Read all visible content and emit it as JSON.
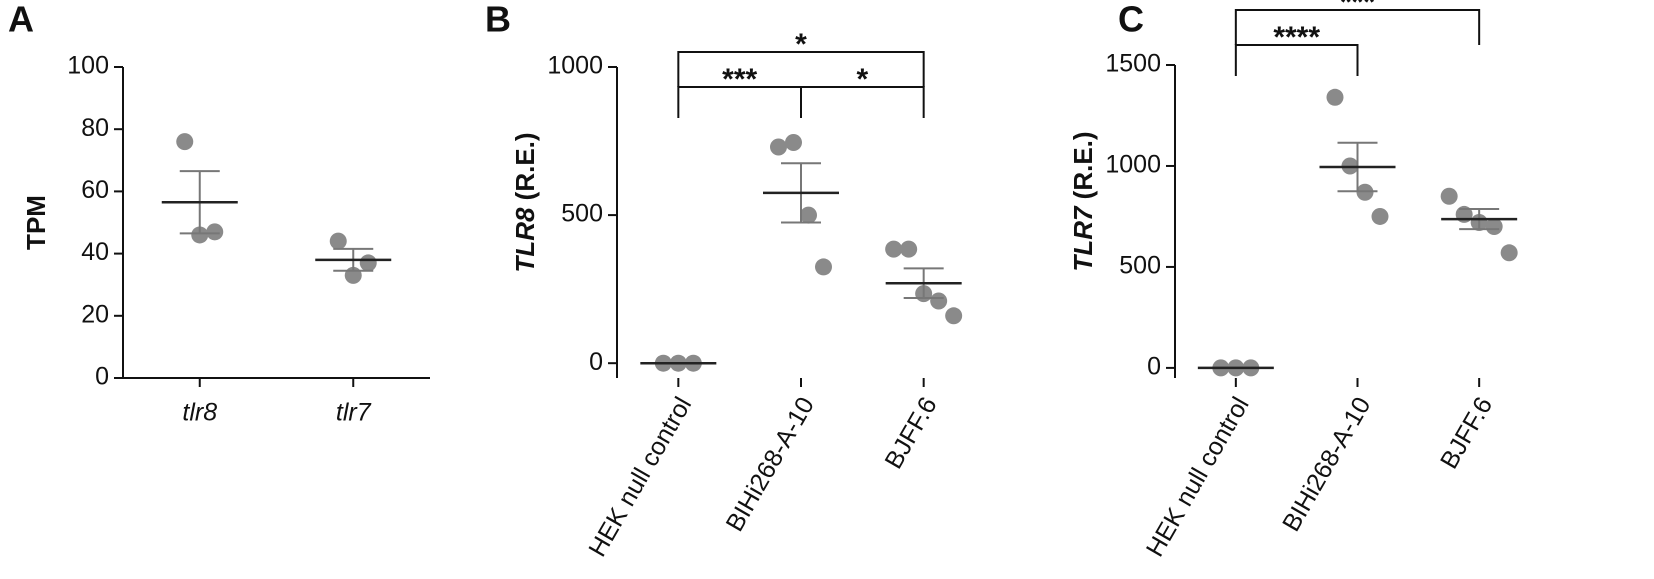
{
  "chart_data": [
    {
      "type": "dot",
      "panel": "A",
      "ylabel": "TPM",
      "categories": [
        "tlr8",
        "tlr7"
      ],
      "category_style": "italic",
      "x_axis_line": true,
      "points": [
        [
          76,
          46,
          47
        ],
        [
          44,
          33,
          37
        ]
      ],
      "means": [
        56.5,
        38
      ],
      "errors": [
        10,
        3.5
      ],
      "color": "#8a8a8a",
      "ylim": [
        0,
        100
      ],
      "yticks": [
        0,
        20,
        40,
        60,
        80,
        100
      ],
      "brackets": []
    },
    {
      "type": "dot",
      "panel": "B",
      "ylabel_gene": "TLR8",
      "ylabel_unit": "(R.E.)",
      "categories": [
        "HEK null control",
        "BIHi268-A-10",
        "BJFF.6"
      ],
      "category_style": "rotated",
      "x_axis_line": false,
      "points": [
        [
          0,
          0,
          0
        ],
        [
          730,
          745,
          500,
          325
        ],
        [
          385,
          385,
          235,
          210,
          160
        ]
      ],
      "means": [
        0,
        575,
        270
      ],
      "errors": [
        0,
        100,
        50
      ],
      "color": "#8a8a8a",
      "ylim": [
        -50,
        1000
      ],
      "yticks": [
        0,
        500,
        1000
      ],
      "brackets": [
        {
          "from": 0,
          "to": 1,
          "label": "***"
        },
        {
          "from": 1,
          "to": 2,
          "label": "*"
        },
        {
          "from": 0,
          "to": 2,
          "label": "*"
        }
      ]
    },
    {
      "type": "dot",
      "panel": "C",
      "ylabel_gene": "TLR7",
      "ylabel_unit": "(R.E.)",
      "categories": [
        "HEK null control",
        "BIHi268-A-10",
        "BJFF.6"
      ],
      "category_style": "rotated",
      "x_axis_line": false,
      "points": [
        [
          0,
          0,
          0
        ],
        [
          1340,
          1000,
          870,
          750
        ],
        [
          850,
          760,
          720,
          700,
          570
        ]
      ],
      "means": [
        0,
        995,
        737
      ],
      "errors": [
        0,
        120,
        50
      ],
      "color": "#8a8a8a",
      "ylim": [
        -50,
        1500
      ],
      "yticks": [
        0,
        500,
        1000,
        1500
      ],
      "brackets": [
        {
          "from": 0,
          "to": 1,
          "label": "****"
        },
        {
          "from": 0,
          "to": 2,
          "label": "***"
        }
      ]
    }
  ]
}
